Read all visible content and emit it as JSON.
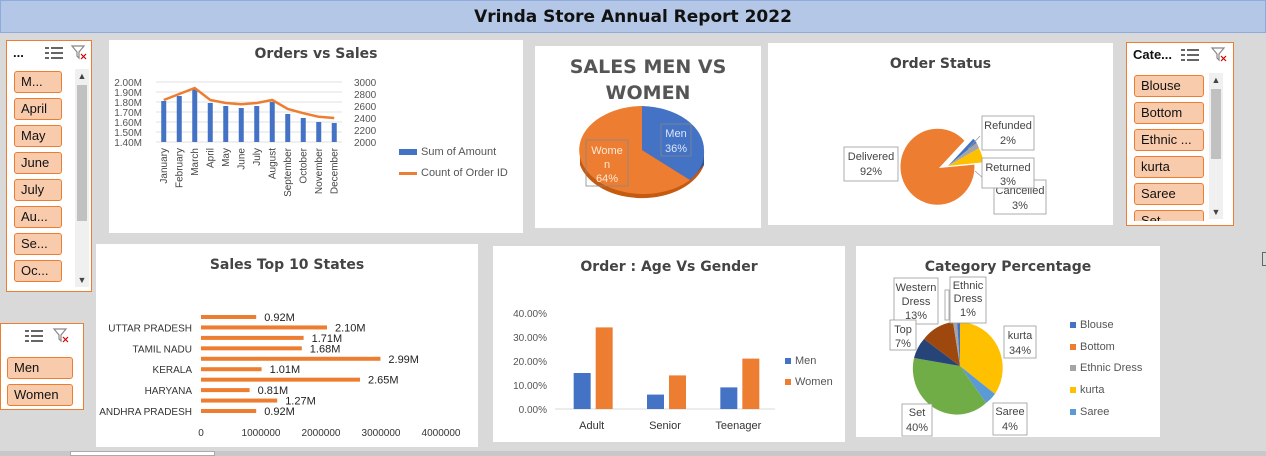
{
  "report": {
    "title": "Vrinda Store Annual Report 2022"
  },
  "slicers": {
    "month": {
      "header": "...",
      "items": [
        "M...",
        "April",
        "May",
        "June",
        "July",
        "Au...",
        "Se...",
        "Oc..."
      ]
    },
    "gender": {
      "items": [
        "Men",
        "Women"
      ]
    },
    "category": {
      "header": "Cate...",
      "items": [
        "Blouse",
        "Bottom",
        "Ethnic ...",
        "kurta",
        "Saree",
        "Set"
      ]
    }
  },
  "charts": {
    "orders_sales": {
      "title": "Orders vs Sales",
      "left_axis_labels": [
        "2.00M",
        "1.90M",
        "1.80M",
        "1.70M",
        "1.60M",
        "1.50M",
        "1.40M"
      ],
      "right_axis_labels": [
        "3000",
        "2800",
        "2600",
        "2400",
        "2200",
        "2000"
      ],
      "legend": [
        "Sum of Amount",
        "Count of Order ID"
      ]
    },
    "gender_pie": {
      "title_line1": "SALES MEN VS",
      "title_line2": "WOMEN",
      "men_label": "Men",
      "men_pct": "36%",
      "women_label_1": "Wome",
      "women_label_2": "n",
      "women_pct": "64%"
    },
    "order_status": {
      "title": "Order Status",
      "labels": {
        "delivered": "Delivered",
        "delivered_pct": "92%",
        "refunded": "Refunded",
        "refunded_pct": "2%",
        "returned": "Returned",
        "returned_pct": "3%",
        "cancelled": "Cancelled",
        "cancelled_pct": "3%"
      }
    },
    "top_states": {
      "title": "Sales Top 10 States",
      "x_ticks": [
        "0",
        "1000000",
        "2000000",
        "3000000",
        "4000000"
      ]
    },
    "age_gender": {
      "title": "Order : Age Vs Gender",
      "y_ticks": [
        "40.00%",
        "30.00%",
        "20.00%",
        "10.00%",
        "0.00%"
      ],
      "legend": [
        "Men",
        "Women"
      ]
    },
    "category_pct": {
      "title": "Category Percentage",
      "labels": {
        "western_1": "Western",
        "western_2": "Dress",
        "western_pct": "13%",
        "ethnic_1": "Ethnic",
        "ethnic_2": "Dress",
        "ethnic_pct": "1%",
        "top": "Top",
        "top_pct": "7%",
        "kurta": "kurta",
        "kurta_pct": "34%",
        "set": "Set",
        "set_pct": "40%",
        "saree": "Saree",
        "saree_pct": "4%"
      },
      "legend": [
        "Blouse",
        "Bottom",
        "Ethnic Dress",
        "kurta",
        "Saree"
      ]
    }
  },
  "chart_data": [
    {
      "type": "bar",
      "title": "Orders vs Sales",
      "categories": [
        "January",
        "February",
        "March",
        "April",
        "May",
        "June",
        "July",
        "August",
        "September",
        "October",
        "November",
        "December"
      ],
      "series": [
        {
          "name": "Sum of Amount",
          "type": "bar",
          "axis": "left",
          "values": [
            1.81,
            1.86,
            1.93,
            1.79,
            1.76,
            1.74,
            1.76,
            1.8,
            1.68,
            1.64,
            1.6,
            1.59
          ]
        },
        {
          "name": "Count of Order ID",
          "type": "line",
          "axis": "right",
          "values": [
            2700,
            2800,
            2900,
            2700,
            2650,
            2630,
            2650,
            2700,
            2550,
            2480,
            2420,
            2400
          ]
        }
      ],
      "ylim_left": [
        1.4,
        2.0
      ],
      "ylim_right": [
        2000,
        3000
      ],
      "legend": "right",
      "grid": true
    },
    {
      "type": "pie",
      "title": "SALES MEN VS WOMEN",
      "slices": [
        {
          "label": "Men",
          "value": 36
        },
        {
          "label": "Women",
          "value": 64
        }
      ]
    },
    {
      "type": "pie",
      "title": "Order Status",
      "slices": [
        {
          "label": "Delivered",
          "value": 92
        },
        {
          "label": "Refunded",
          "value": 2
        },
        {
          "label": "Returned",
          "value": 3
        },
        {
          "label": "Cancelled",
          "value": 3
        }
      ]
    },
    {
      "type": "bar",
      "orientation": "horizontal",
      "title": "Sales Top 10 States",
      "categories": [
        "",
        "UTTAR PRADESH",
        "",
        "TAMIL NADU",
        "",
        "KERALA",
        "",
        "HARYANA",
        "",
        "ANDHRA PRADESH"
      ],
      "values": [
        920000,
        2100000,
        1710000,
        1680000,
        2990000,
        1010000,
        2650000,
        810000,
        1270000,
        920000
      ],
      "data_labels": [
        "0.92M",
        "2.10M",
        "1.71M",
        "1.68M",
        "2.99M",
        "1.01M",
        "2.65M",
        "0.81M",
        "1.27M",
        "0.92M"
      ],
      "xlim": [
        0,
        4000000
      ]
    },
    {
      "type": "bar",
      "title": "Order : Age Vs Gender",
      "categories": [
        "Adult",
        "Senior",
        "Teenager"
      ],
      "series": [
        {
          "name": "Men",
          "values": [
            15,
            6,
            9
          ]
        },
        {
          "name": "Women",
          "values": [
            34,
            14,
            21
          ]
        }
      ],
      "ylim": [
        0,
        40
      ],
      "legend": "right"
    },
    {
      "type": "pie",
      "title": "Category Percentage",
      "slices": [
        {
          "label": "Western Dress",
          "value": 13
        },
        {
          "label": "Ethnic Dress",
          "value": 1
        },
        {
          "label": "Blouse",
          "value": 1
        },
        {
          "label": "kurta",
          "value": 34
        },
        {
          "label": "Saree",
          "value": 4
        },
        {
          "label": "Set",
          "value": 40
        },
        {
          "label": "Top",
          "value": 7
        }
      ],
      "legend": "right"
    }
  ],
  "colors": {
    "blue": "#4472c4",
    "orange": "#ed7d31",
    "gray": "#a5a5a5",
    "gold": "#ffc000",
    "lightblue": "#5b9bd5",
    "green": "#70ad47",
    "darkblue": "#264478",
    "brown": "#9e480e"
  }
}
